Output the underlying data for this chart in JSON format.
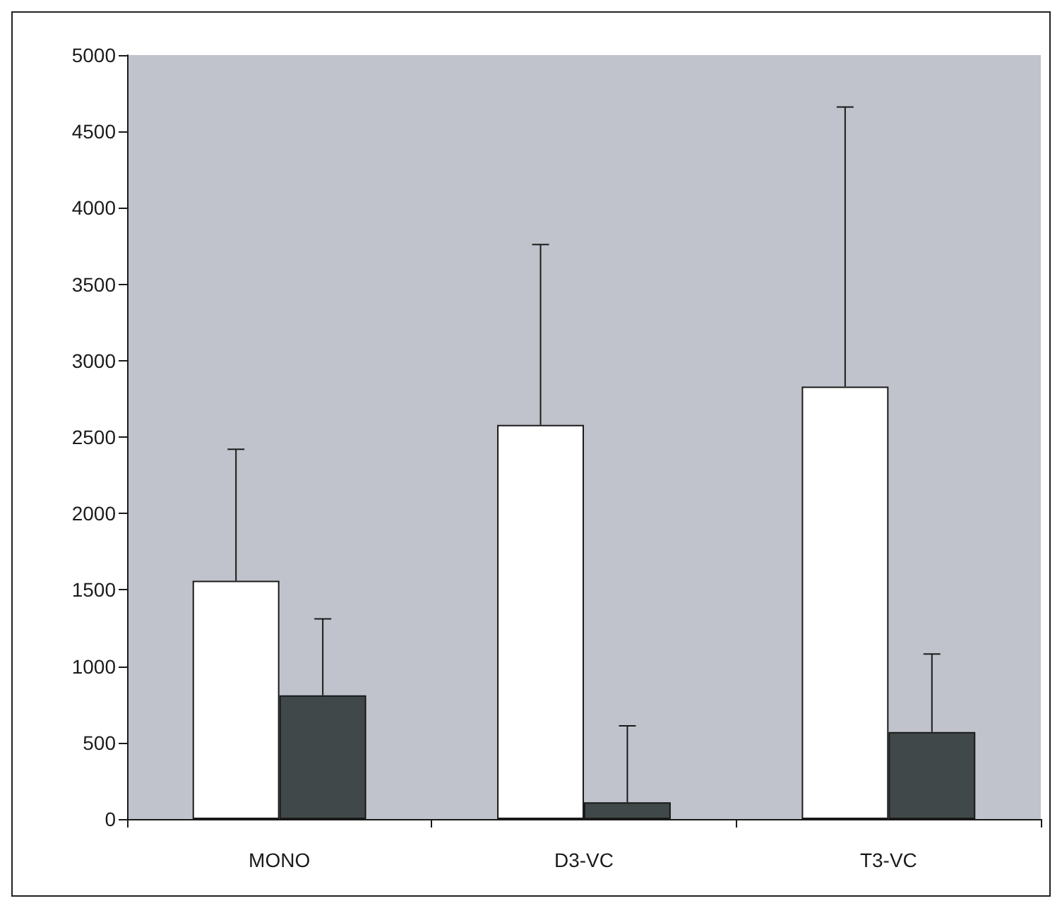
{
  "chart_data": {
    "type": "bar",
    "categories": [
      "MONO",
      "D3-VC",
      "T3-VC"
    ],
    "series": [
      {
        "color": "#ffffff",
        "values": [
          1560,
          2580,
          2830
        ],
        "errors": [
          [
            1560,
            2420
          ],
          [
            2580,
            3760
          ],
          [
            2830,
            4660
          ]
        ]
      },
      {
        "color": "#414849",
        "values": [
          810,
          110,
          570
        ],
        "errors": [
          [
            810,
            1310
          ],
          [
            110,
            610
          ],
          [
            570,
            1080
          ]
        ]
      }
    ],
    "ylim": [
      0,
      5000
    ],
    "yticks": [
      0,
      500,
      1000,
      1500,
      2000,
      2500,
      3000,
      3500,
      4000,
      4500,
      5000
    ],
    "grid": false
  }
}
